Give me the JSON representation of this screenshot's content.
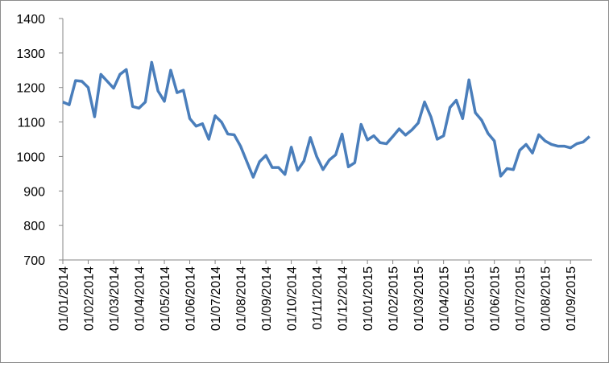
{
  "chart_data": {
    "type": "line",
    "categories": [
      "01/01/2014",
      null,
      null,
      null,
      "01/02/2014",
      null,
      null,
      null,
      "01/03/2014",
      null,
      null,
      null,
      "01/04/2014",
      null,
      null,
      null,
      "01/05/2014",
      null,
      null,
      null,
      "01/06/2014",
      null,
      null,
      null,
      "01/07/2014",
      null,
      null,
      null,
      "01/08/2014",
      null,
      null,
      null,
      "01/09/2014",
      null,
      null,
      null,
      "01/10/2014",
      null,
      null,
      null,
      "01/11/2014",
      null,
      null,
      null,
      "01/12/2014",
      null,
      null,
      null,
      "01/01/2015",
      null,
      null,
      null,
      "01/02/2015",
      null,
      null,
      null,
      "01/03/2015",
      null,
      null,
      null,
      "01/04/2015",
      null,
      null,
      null,
      "01/05/2015",
      null,
      null,
      null,
      "01/06/2015",
      null,
      null,
      null,
      "01/07/2015",
      null,
      null,
      null,
      "01/08/2015",
      null,
      null,
      null,
      "01/09/2015",
      null,
      null,
      null
    ],
    "values": [
      1158,
      1150,
      1220,
      1218,
      1200,
      1115,
      1238,
      1218,
      1198,
      1238,
      1252,
      1145,
      1140,
      1158,
      1273,
      1190,
      1160,
      1250,
      1185,
      1192,
      1110,
      1088,
      1095,
      1050,
      1118,
      1100,
      1065,
      1063,
      1030,
      985,
      940,
      985,
      1003,
      968,
      968,
      948,
      1027,
      960,
      987,
      1055,
      1000,
      962,
      990,
      1005,
      1065,
      970,
      982,
      1093,
      1048,
      1060,
      1040,
      1037,
      1058,
      1080,
      1062,
      1077,
      1097,
      1158,
      1115,
      1050,
      1060,
      1142,
      1163,
      1110,
      1222,
      1127,
      1105,
      1067,
      1045,
      943,
      965,
      962,
      1018,
      1035,
      1010,
      1063,
      1045,
      1035,
      1030,
      1030,
      1025,
      1037,
      1042,
      1058
    ],
    "color": "#4a7ebb",
    "ylim": [
      700,
      1400
    ],
    "yticks": [
      700,
      800,
      900,
      1000,
      1100,
      1200,
      1300,
      1400
    ],
    "grid": false
  }
}
